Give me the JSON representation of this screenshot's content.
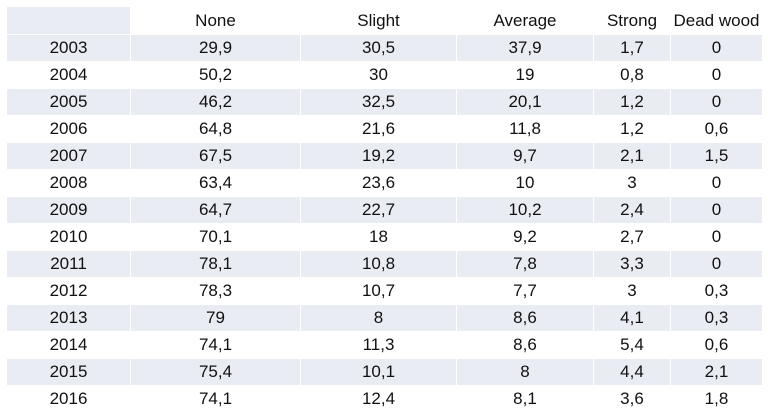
{
  "chart_data": {
    "type": "table",
    "columns": [
      "",
      "None",
      "Slight",
      "Average",
      "Strong",
      "Dead wood"
    ],
    "rows": [
      [
        "2003",
        "29,9",
        "30,5",
        "37,9",
        "1,7",
        "0"
      ],
      [
        "2004",
        "50,2",
        "30",
        "19",
        "0,8",
        "0"
      ],
      [
        "2005",
        "46,2",
        "32,5",
        "20,1",
        "1,2",
        "0"
      ],
      [
        "2006",
        "64,8",
        "21,6",
        "11,8",
        "1,2",
        "0,6"
      ],
      [
        "2007",
        "67,5",
        "19,2",
        "9,7",
        "2,1",
        "1,5"
      ],
      [
        "2008",
        "63,4",
        "23,6",
        "10",
        "3",
        "0"
      ],
      [
        "2009",
        "64,7",
        "22,7",
        "10,2",
        "2,4",
        "0"
      ],
      [
        "2010",
        "70,1",
        "18",
        "9,2",
        "2,7",
        "0"
      ],
      [
        "2011",
        "78,1",
        "10,8",
        "7,8",
        "3,3",
        "0"
      ],
      [
        "2012",
        "78,3",
        "10,7",
        "7,7",
        "3",
        "0,3"
      ],
      [
        "2013",
        "79",
        "8",
        "8,6",
        "4,1",
        "0,3"
      ],
      [
        "2014",
        "74,1",
        "11,3",
        "8,6",
        "5,4",
        "0,6"
      ],
      [
        "2015",
        "75,4",
        "10,1",
        "8",
        "4,4",
        "2,1"
      ],
      [
        "2016",
        "74,1",
        "12,4",
        "8,1",
        "3,6",
        "1,8"
      ]
    ],
    "colors": {
      "band": "#e9ecf3",
      "text": "#111111"
    }
  }
}
